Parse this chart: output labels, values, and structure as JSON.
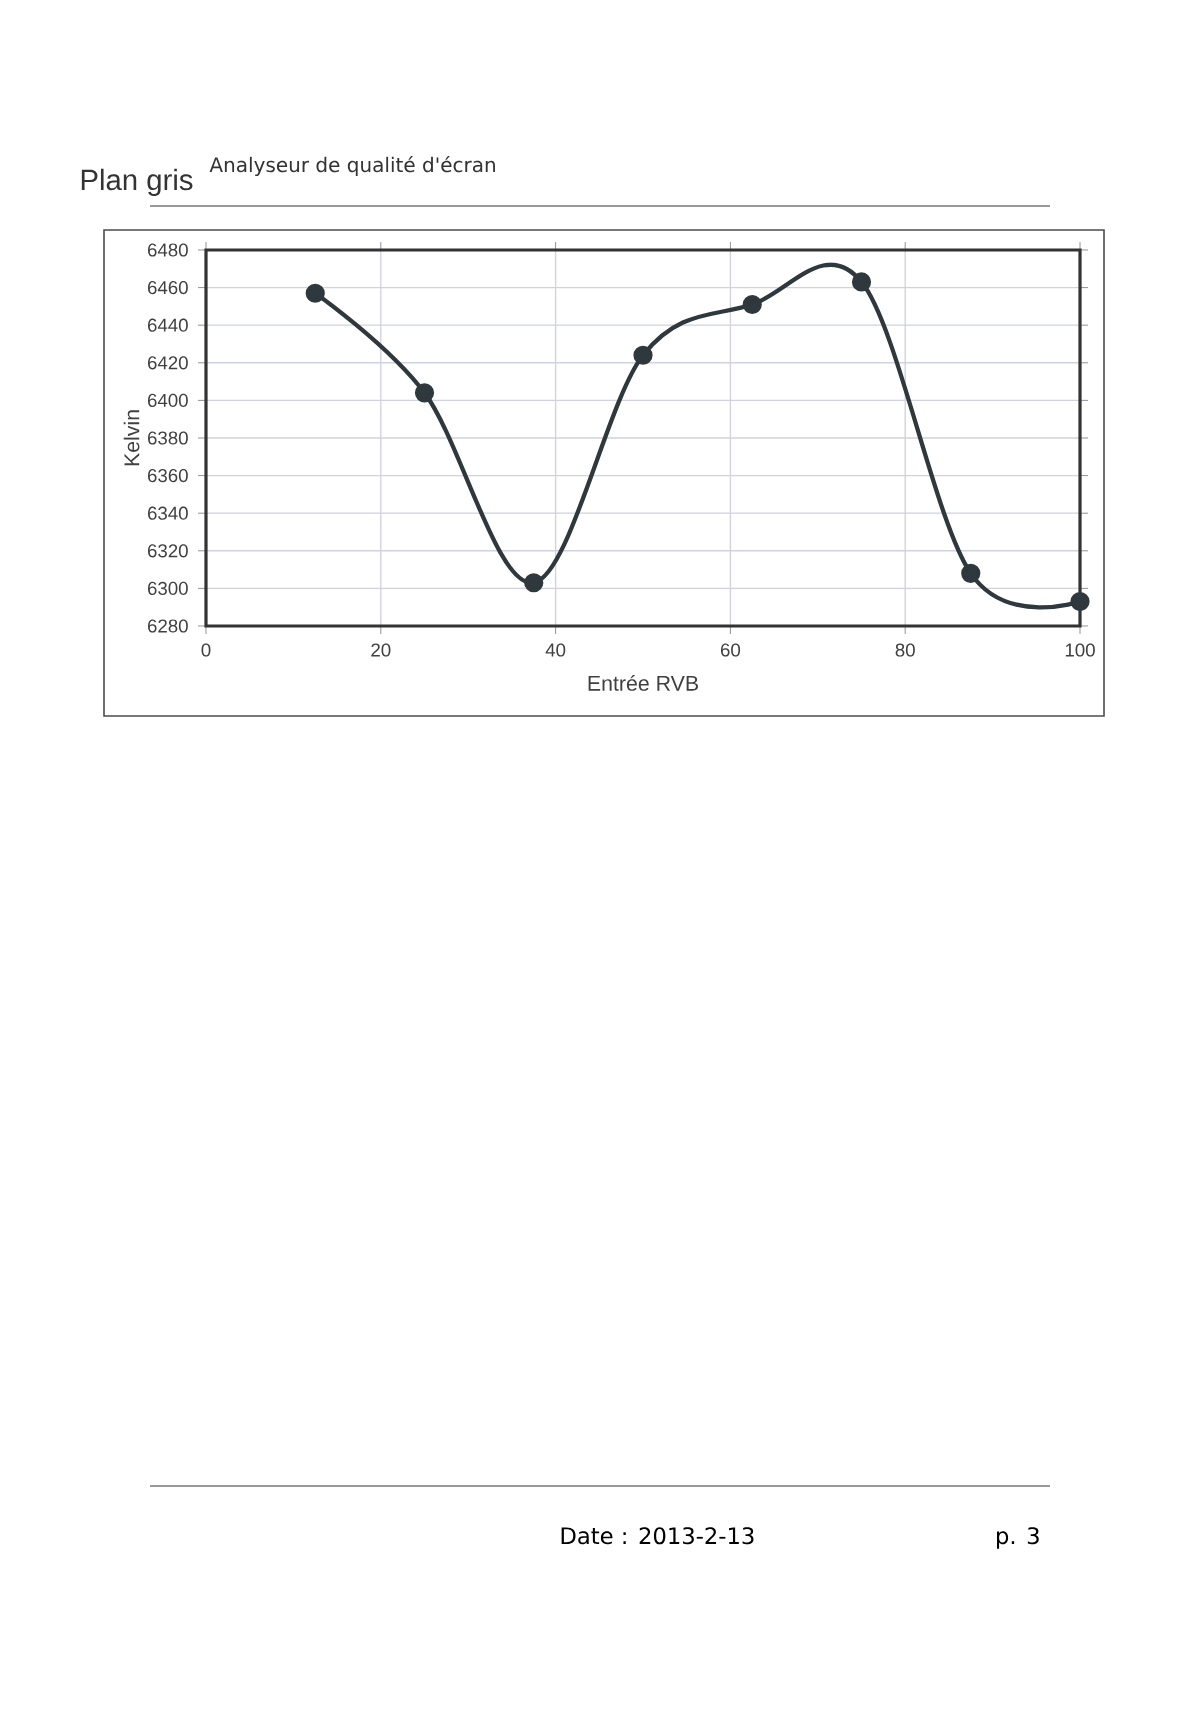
{
  "chart_data": {
    "type": "line",
    "title": "Plan gris",
    "subtitle": "Analyseur de qualité d'écran",
    "xlabel": "Entrée RVB",
    "ylabel": "Kelvin",
    "annotations": [
      "Date : 2013-2-13",
      "p. 3"
    ],
    "x": [
      12.5,
      25,
      37.5,
      50,
      62.5,
      75,
      87.5,
      100
    ],
    "series": [
      {
        "color": "#2e383d",
        "values": [
          6457,
          6404,
          6303,
          6424,
          6451,
          6463,
          6308,
          6293
        ]
      }
    ],
    "xlim": [
      0,
      100
    ],
    "xticks": [
      0,
      20,
      40,
      60,
      80,
      100
    ],
    "ylim": [
      6280,
      6480
    ],
    "yticks": [
      6280,
      6300,
      6320,
      6340,
      6360,
      6380,
      6400,
      6420,
      6440,
      6460,
      6480
    ],
    "grid": true,
    "marker": "circle",
    "line_style": "solid"
  }
}
